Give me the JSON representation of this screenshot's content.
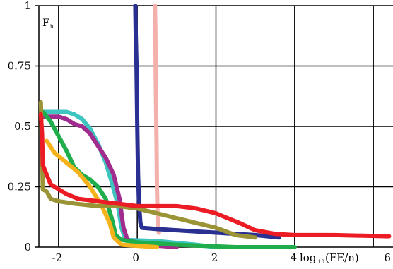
{
  "chart_data": {
    "type": "line",
    "title": "",
    "ylabel_main": "F",
    "ylabel_sub": "b",
    "xlabel_prefix": "log",
    "xlabel_sub": "10",
    "xlabel_main": "(FE/n)",
    "xlim": [
      -2.5,
      6.5
    ],
    "ylim": [
      0,
      1
    ],
    "grid": true,
    "x_ticks": [
      {
        "value": -2,
        "label": "-2"
      },
      {
        "value": 0,
        "label": "0"
      },
      {
        "value": 2,
        "label": "2"
      },
      {
        "value": 4,
        "label": "4"
      },
      {
        "value": 6,
        "label": "6"
      }
    ],
    "y_ticks": [
      {
        "value": 0,
        "label": "0"
      },
      {
        "value": 0.25,
        "label": "0.25"
      },
      {
        "value": 0.5,
        "label": "0.5"
      },
      {
        "value": 0.75,
        "label": "0.75"
      },
      {
        "value": 1,
        "label": "1"
      }
    ],
    "series": [
      {
        "color": "#f4b0aa",
        "points": [
          [
            0.45,
            1.0
          ],
          [
            0.46,
            0.9
          ],
          [
            0.47,
            0.7
          ],
          [
            0.49,
            0.45
          ],
          [
            0.5,
            0.25
          ],
          [
            0.52,
            0.1
          ],
          [
            0.55,
            0.06
          ]
        ]
      },
      {
        "color": "#2a2f92",
        "points": [
          [
            -0.05,
            1.0
          ],
          [
            -0.04,
            0.9
          ],
          [
            -0.02,
            0.75
          ],
          [
            0.0,
            0.5
          ],
          [
            0.02,
            0.3
          ],
          [
            0.05,
            0.17
          ],
          [
            0.08,
            0.1
          ],
          [
            0.12,
            0.08
          ],
          [
            0.5,
            0.075
          ],
          [
            1.0,
            0.07
          ],
          [
            2.0,
            0.06
          ],
          [
            3.0,
            0.05
          ],
          [
            3.6,
            0.04
          ]
        ]
      },
      {
        "color": "#3fc4bf",
        "points": [
          [
            -2.4,
            0.56
          ],
          [
            -1.8,
            0.56
          ],
          [
            -1.6,
            0.55
          ],
          [
            -1.4,
            0.53
          ],
          [
            -1.2,
            0.49
          ],
          [
            -1.0,
            0.43
          ],
          [
            -0.8,
            0.35
          ],
          [
            -0.65,
            0.27
          ],
          [
            -0.5,
            0.18
          ],
          [
            -0.4,
            0.08
          ],
          [
            -0.3,
            0.03
          ],
          [
            0.5,
            0.025
          ],
          [
            1.5,
            0.01
          ],
          [
            2.0,
            0.0
          ]
        ]
      },
      {
        "color": "#a12c8e",
        "points": [
          [
            -2.4,
            0.54
          ],
          [
            -2.0,
            0.54
          ],
          [
            -1.8,
            0.53
          ],
          [
            -1.6,
            0.51
          ],
          [
            -1.4,
            0.5
          ],
          [
            -1.2,
            0.47
          ],
          [
            -1.0,
            0.42
          ],
          [
            -0.8,
            0.37
          ],
          [
            -0.6,
            0.3
          ],
          [
            -0.45,
            0.2
          ],
          [
            -0.35,
            0.08
          ],
          [
            -0.25,
            0.03
          ],
          [
            0.2,
            0.01
          ],
          [
            1.0,
            0.0
          ]
        ]
      },
      {
        "color": "#1fae4b",
        "points": [
          [
            -2.4,
            0.56
          ],
          [
            -2.2,
            0.52
          ],
          [
            -2.0,
            0.46
          ],
          [
            -1.8,
            0.4
          ],
          [
            -1.6,
            0.33
          ],
          [
            -1.4,
            0.3
          ],
          [
            -1.2,
            0.28
          ],
          [
            -1.0,
            0.25
          ],
          [
            -0.8,
            0.2
          ],
          [
            -0.65,
            0.12
          ],
          [
            -0.55,
            0.05
          ],
          [
            -0.4,
            0.03
          ],
          [
            0.0,
            0.02
          ],
          [
            1.0,
            0.01
          ],
          [
            2.5,
            0.0
          ],
          [
            4.0,
            0.0
          ]
        ]
      },
      {
        "color": "#f5b21a",
        "points": [
          [
            -2.3,
            0.44
          ],
          [
            -2.1,
            0.39
          ],
          [
            -1.8,
            0.35
          ],
          [
            -1.5,
            0.31
          ],
          [
            -1.2,
            0.25
          ],
          [
            -0.9,
            0.17
          ],
          [
            -0.7,
            0.1
          ],
          [
            -0.6,
            0.04
          ],
          [
            -0.4,
            0.01
          ],
          [
            0.5,
            0.0
          ]
        ]
      },
      {
        "color": "#9a9436",
        "points": [
          [
            -2.45,
            0.6
          ],
          [
            -2.42,
            0.4
          ],
          [
            -2.4,
            0.24
          ],
          [
            -2.3,
            0.23
          ],
          [
            -2.2,
            0.2
          ],
          [
            -2.0,
            0.19
          ],
          [
            -1.6,
            0.18
          ],
          [
            -1.0,
            0.17
          ],
          [
            -0.5,
            0.17
          ],
          [
            0.0,
            0.16
          ],
          [
            0.5,
            0.14
          ],
          [
            1.0,
            0.12
          ],
          [
            1.5,
            0.1
          ],
          [
            2.0,
            0.08
          ],
          [
            2.5,
            0.05
          ],
          [
            3.0,
            0.04
          ]
        ]
      },
      {
        "color": "#ec1c24",
        "points": [
          [
            -2.45,
            0.55
          ],
          [
            -2.42,
            0.47
          ],
          [
            -2.4,
            0.34
          ],
          [
            -2.3,
            0.3
          ],
          [
            -2.2,
            0.26
          ],
          [
            -2.0,
            0.24
          ],
          [
            -1.8,
            0.22
          ],
          [
            -1.5,
            0.2
          ],
          [
            -1.0,
            0.19
          ],
          [
            -0.5,
            0.18
          ],
          [
            0.0,
            0.17
          ],
          [
            1.0,
            0.17
          ],
          [
            1.5,
            0.16
          ],
          [
            2.0,
            0.14
          ],
          [
            2.3,
            0.12
          ],
          [
            2.6,
            0.1
          ],
          [
            3.0,
            0.07
          ],
          [
            3.5,
            0.055
          ],
          [
            4.0,
            0.05
          ],
          [
            5.0,
            0.05
          ],
          [
            6.4,
            0.045
          ]
        ]
      }
    ]
  }
}
